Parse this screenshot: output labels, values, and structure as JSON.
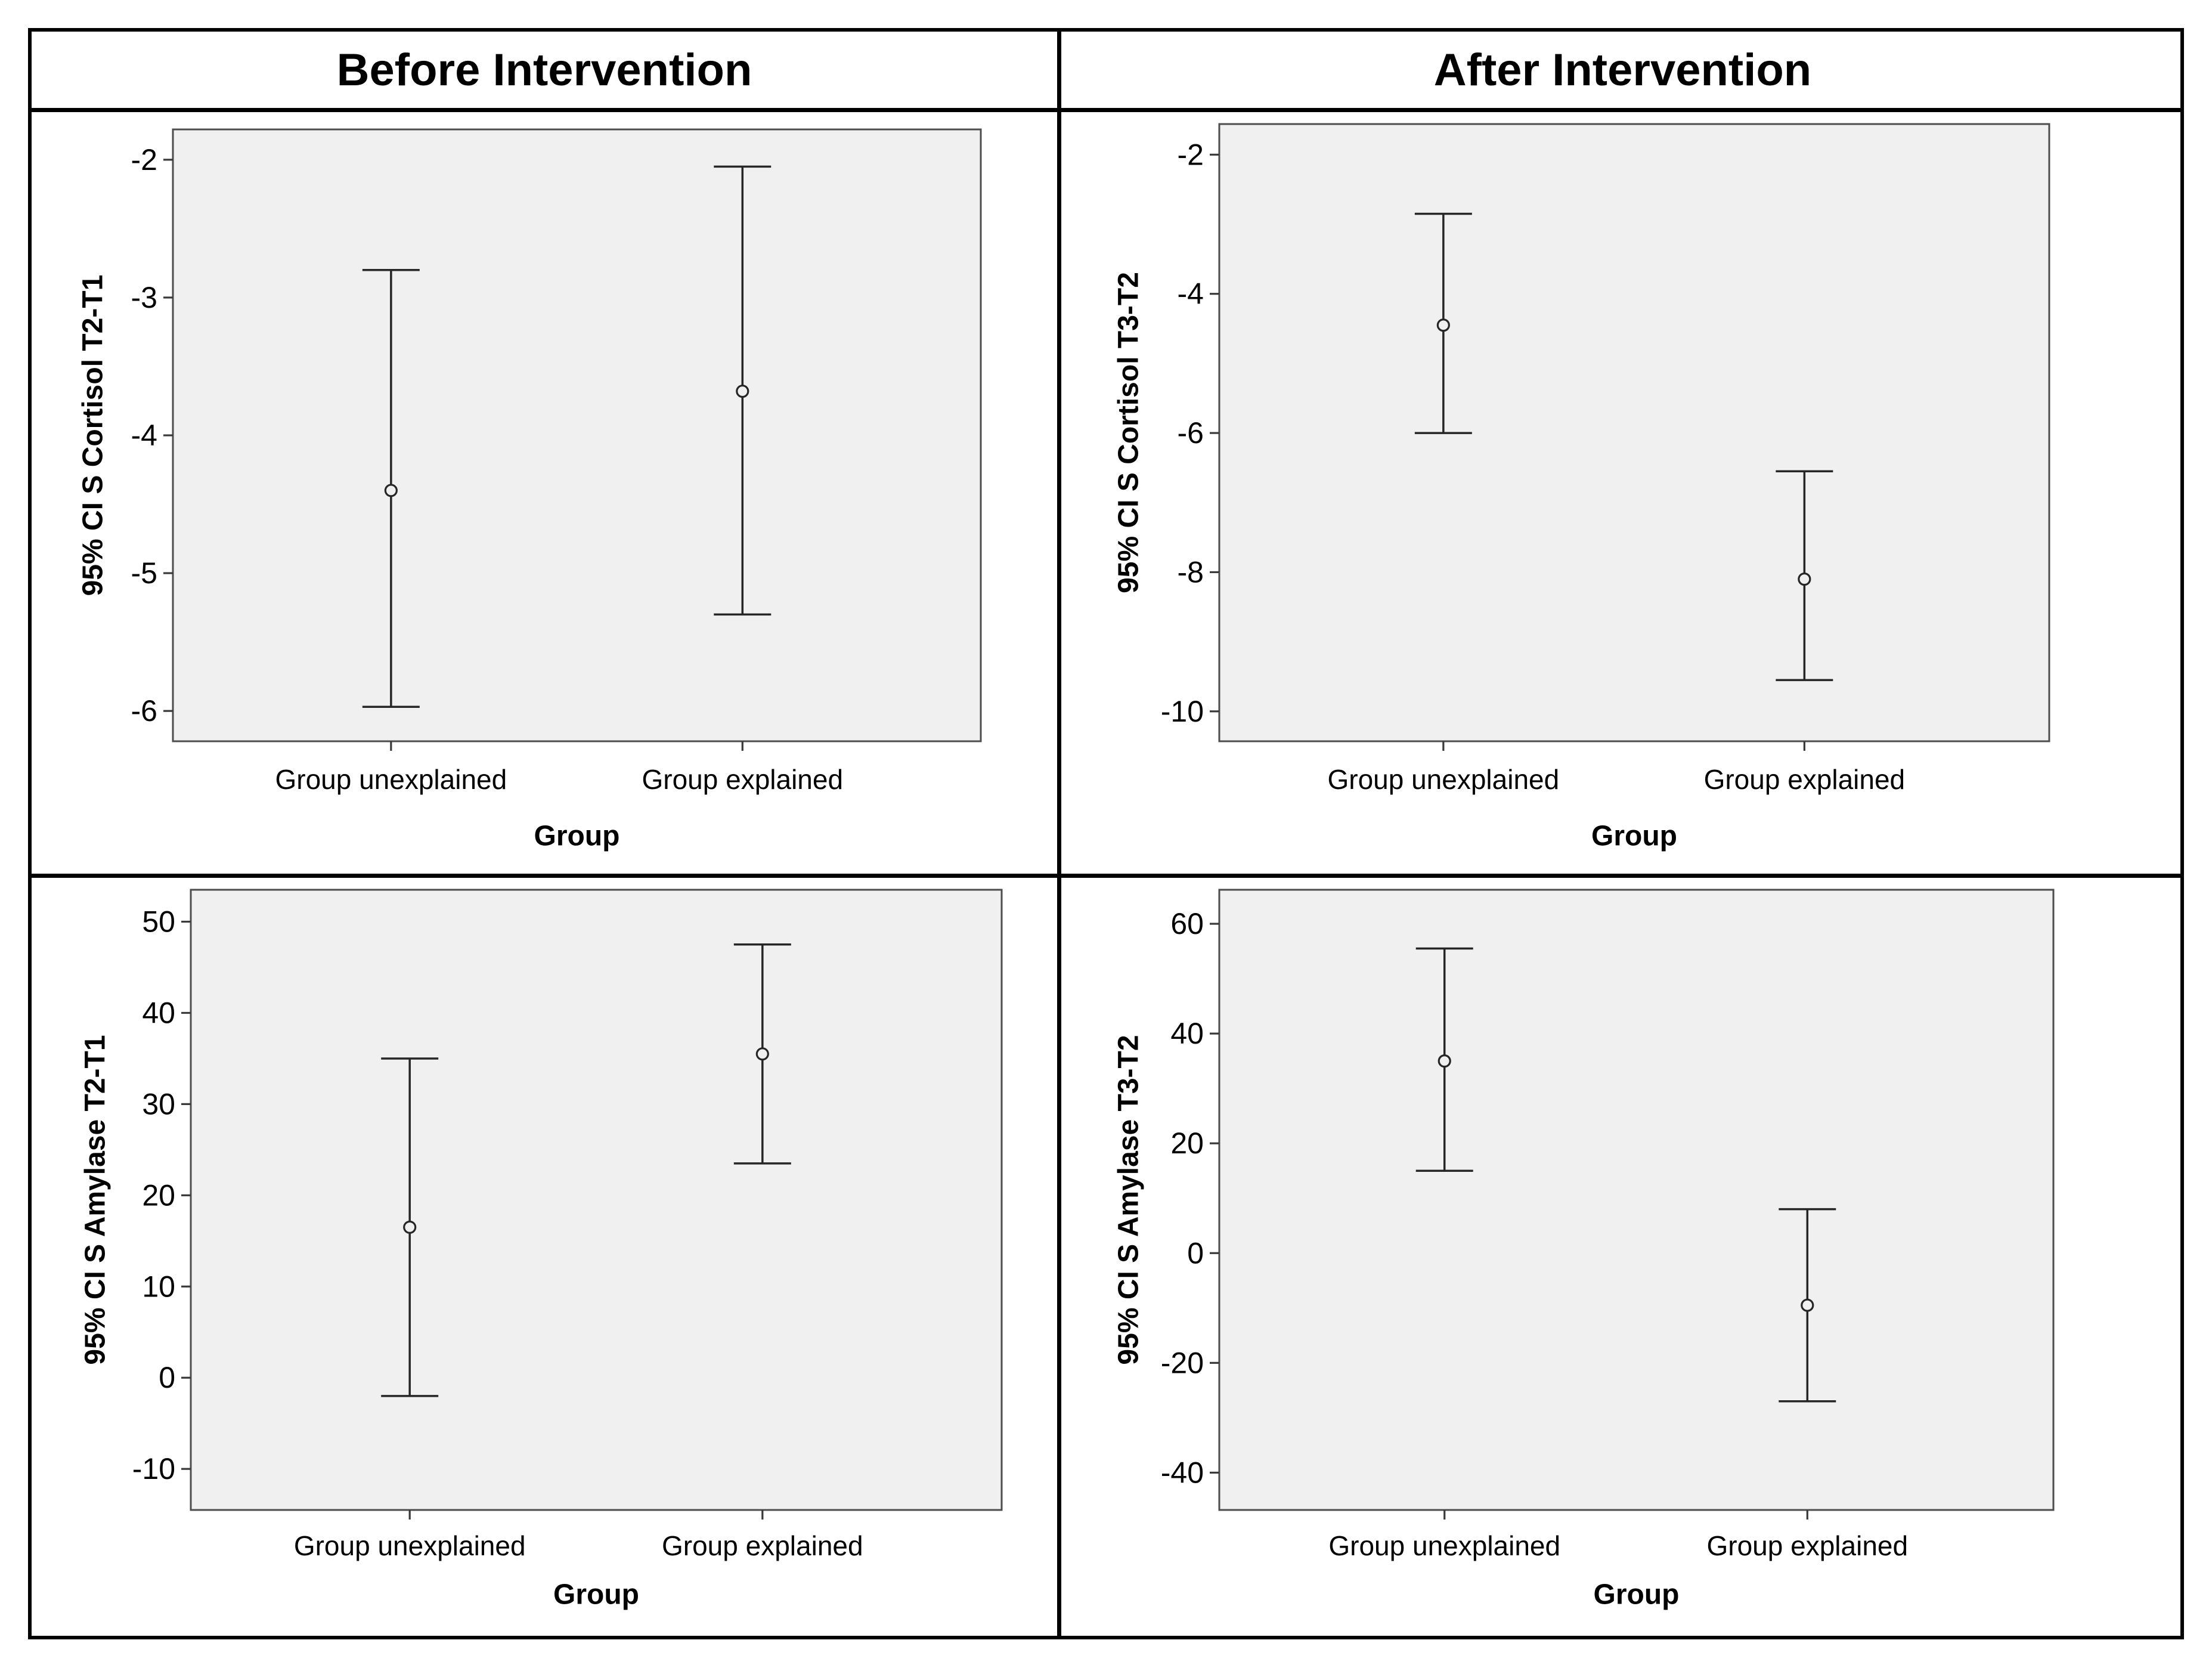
{
  "figure": {
    "background": "#ffffff",
    "column_headers": [
      "Before Intervention",
      "After Intervention"
    ]
  },
  "style": {
    "plot_bg": "#f0f0f0",
    "frame_color": "#4d4d4d",
    "bar_color": "#262626",
    "tick_color": "#3a3a3a",
    "text_color": "#000000",
    "marker": "open-circle"
  },
  "chart_data": [
    {
      "id": "cortisol-before",
      "type": "scatter",
      "style": "errorbar-95ci",
      "panel": "Before Intervention",
      "ylabel": "95% CI S Cortisol T2-T1",
      "xlabel": "Group",
      "categories": [
        "Group unexplained",
        "Group explained"
      ],
      "points": [
        {
          "category": "Group unexplained",
          "mean": -4.4,
          "ci_lower": -5.97,
          "ci_upper": -2.8
        },
        {
          "category": "Group explained",
          "mean": -3.68,
          "ci_lower": -5.3,
          "ci_upper": -2.05
        }
      ],
      "yticks": [
        -2,
        -3,
        -4,
        -5,
        -6
      ],
      "ylim": [
        -6.22,
        -1.78
      ],
      "grid": false,
      "legend": "none"
    },
    {
      "id": "cortisol-after",
      "type": "scatter",
      "style": "errorbar-95ci",
      "panel": "After Intervention",
      "ylabel": "95% CI S Cortisol T3-T2",
      "xlabel": "Group",
      "categories": [
        "Group unexplained",
        "Group explained"
      ],
      "points": [
        {
          "category": "Group unexplained",
          "mean": -4.45,
          "ci_lower": -6.0,
          "ci_upper": -2.85
        },
        {
          "category": "Group explained",
          "mean": -8.1,
          "ci_lower": -9.55,
          "ci_upper": -6.55
        }
      ],
      "yticks": [
        -2,
        -4,
        -6,
        -8,
        -10
      ],
      "ylim": [
        -10.43,
        -1.56
      ],
      "grid": false,
      "legend": "none"
    },
    {
      "id": "amylase-before",
      "type": "scatter",
      "style": "errorbar-95ci",
      "panel": "Before Intervention",
      "ylabel": "95% CI S Amylase T2-T1",
      "xlabel": "Group",
      "categories": [
        "Group unexplained",
        "Group explained"
      ],
      "points": [
        {
          "category": "Group unexplained",
          "mean": 16.5,
          "ci_lower": -2.0,
          "ci_upper": 35.0
        },
        {
          "category": "Group explained",
          "mean": 35.5,
          "ci_lower": 23.5,
          "ci_upper": 47.5
        }
      ],
      "yticks": [
        50,
        40,
        30,
        20,
        10,
        0,
        -10
      ],
      "ylim": [
        -14.5,
        53.5
      ],
      "grid": false,
      "legend": "none"
    },
    {
      "id": "amylase-after",
      "type": "scatter",
      "style": "errorbar-95ci",
      "panel": "After Intervention",
      "ylabel": "95% CI S Amylase T3-T2",
      "xlabel": "Group",
      "categories": [
        "Group unexplained",
        "Group explained"
      ],
      "points": [
        {
          "category": "Group unexplained",
          "mean": 35.0,
          "ci_lower": 15.0,
          "ci_upper": 55.5
        },
        {
          "category": "Group explained",
          "mean": -9.5,
          "ci_lower": -27.0,
          "ci_upper": 8.0
        }
      ],
      "yticks": [
        60,
        40,
        20,
        0,
        -20,
        -40
      ],
      "ylim": [
        -46.8,
        66.2
      ],
      "grid": false,
      "legend": "none"
    }
  ]
}
